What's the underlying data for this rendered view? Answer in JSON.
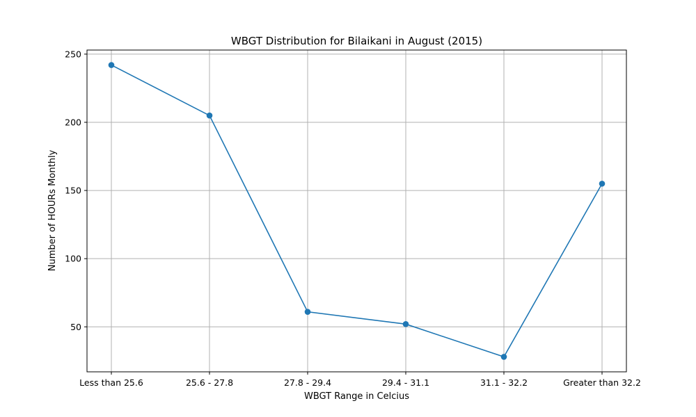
{
  "chart_data": {
    "type": "line",
    "title": "WBGT Distribution for Bilaikani in August (2015)",
    "xlabel": "WBGT Range in Celcius",
    "ylabel": "Number of HOURs Monthly",
    "categories": [
      "Less than 25.6",
      "25.6 - 27.8",
      "27.8 - 29.4",
      "29.4 - 31.1",
      "31.1 - 32.2",
      "Greater than 32.2"
    ],
    "series": [
      {
        "values": [
          242,
          205,
          61,
          52,
          28,
          155
        ]
      }
    ],
    "ylim": [
      17,
      253
    ],
    "yticks": [
      50,
      100,
      150,
      200,
      250
    ],
    "grid": true,
    "colors": {
      "line": "#1f77b4",
      "grid": "#b0b0b0",
      "axes": "#000000"
    }
  }
}
